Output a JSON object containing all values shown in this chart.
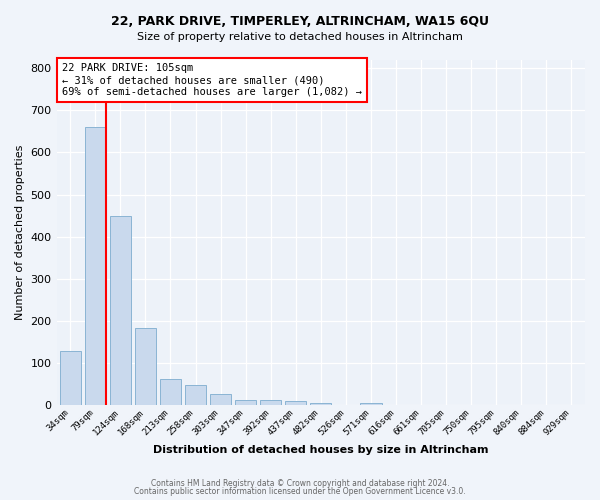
{
  "title_line1": "22, PARK DRIVE, TIMPERLEY, ALTRINCHAM, WA15 6QU",
  "title_line2": "Size of property relative to detached houses in Altrincham",
  "xlabel": "Distribution of detached houses by size in Altrincham",
  "ylabel": "Number of detached properties",
  "bar_labels": [
    "34sqm",
    "79sqm",
    "124sqm",
    "168sqm",
    "213sqm",
    "258sqm",
    "303sqm",
    "347sqm",
    "392sqm",
    "437sqm",
    "482sqm",
    "526sqm",
    "571sqm",
    "616sqm",
    "661sqm",
    "705sqm",
    "750sqm",
    "795sqm",
    "840sqm",
    "884sqm",
    "929sqm"
  ],
  "bar_values": [
    128,
    660,
    450,
    183,
    60,
    47,
    25,
    12,
    12,
    8,
    5,
    0,
    3,
    0,
    0,
    0,
    0,
    0,
    0,
    0,
    0
  ],
  "bar_color": "#c9d9ed",
  "bar_edgecolor": "#8ab4d4",
  "annotation_title": "22 PARK DRIVE: 105sqm",
  "annotation_line1": "← 31% of detached houses are smaller (490)",
  "annotation_line2": "69% of semi-detached houses are larger (1,082) →",
  "annotation_box_color": "white",
  "annotation_box_edgecolor": "red",
  "vline_color": "red",
  "vline_x_index": 1,
  "ylim": [
    0,
    820
  ],
  "yticks": [
    0,
    100,
    200,
    300,
    400,
    500,
    600,
    700,
    800
  ],
  "plot_bg_color": "#edf2f9",
  "fig_bg_color": "#f0f4fa",
  "footer_line1": "Contains HM Land Registry data © Crown copyright and database right 2024.",
  "footer_line2": "Contains public sector information licensed under the Open Government Licence v3.0."
}
